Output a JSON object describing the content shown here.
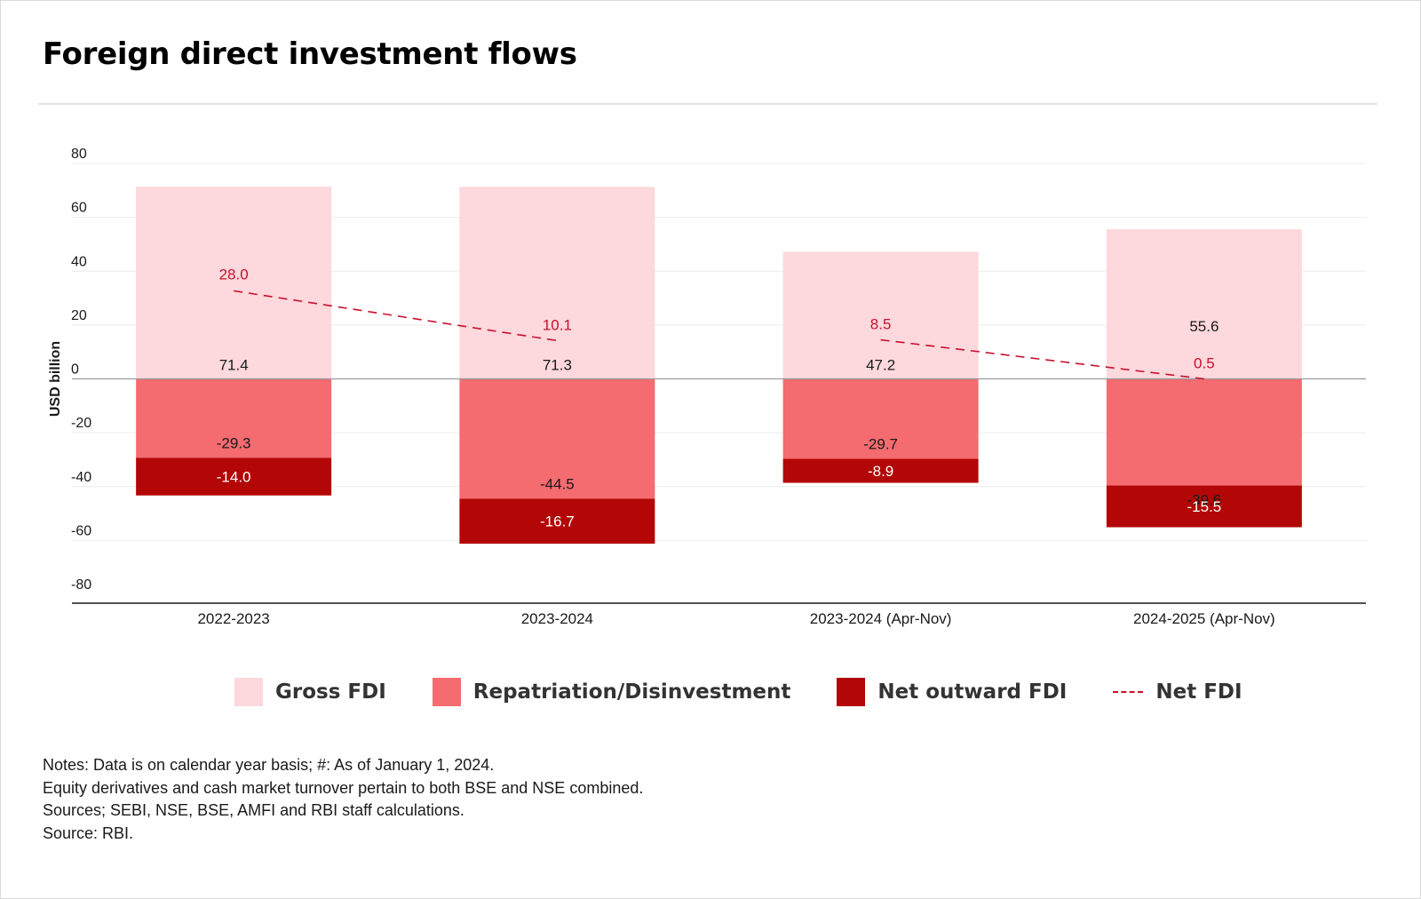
{
  "title": "Foreign direct investment flows",
  "colors": {
    "gross": "#fdd8dc",
    "repatriation": "#f46b70",
    "net_outward": "#b30707",
    "net_fdi": "#c8102e"
  },
  "chart_data": {
    "type": "bar",
    "stacked": true,
    "ylabel": "USD billion",
    "xlabel": "",
    "ylim": [
      -80,
      80
    ],
    "yticks": [
      80,
      60,
      40,
      20,
      0,
      -20,
      -40,
      -60,
      -80
    ],
    "grid": true,
    "legend_position": "bottom",
    "categories": [
      "2022-2023",
      "2023-2024",
      "2023-2024 (Apr-Nov)",
      "2024-2025 (Apr-Nov)"
    ],
    "series": [
      {
        "name": "Gross FDI",
        "type": "bar",
        "values": [
          71.4,
          71.3,
          47.2,
          55.6
        ],
        "labels": [
          "71.4",
          "71.3",
          "47.2",
          "55.6"
        ]
      },
      {
        "name": "Repatriation/Disinvestment",
        "type": "bar",
        "values": [
          -29.3,
          -44.5,
          -29.7,
          -39.6
        ],
        "labels": [
          "-29.3",
          "-44.5",
          "-29.7",
          "-39.6"
        ]
      },
      {
        "name": "Net outward FDI",
        "type": "bar",
        "values": [
          -14.0,
          -16.7,
          -8.9,
          -15.5
        ],
        "labels": [
          "-14.0",
          "-16.7",
          "-8.9",
          "-15.5"
        ]
      },
      {
        "name": "Net FDI",
        "type": "line",
        "style": "dashed",
        "values": [
          28.0,
          10.1,
          8.5,
          0.5
        ],
        "labels": [
          "28.0",
          "10.1",
          "8.5",
          "0.5"
        ]
      }
    ]
  },
  "legend": [
    {
      "label": "Gross FDI",
      "kind": "swatch",
      "color": "#fdd8dc"
    },
    {
      "label": "Repatriation/Disinvestment",
      "kind": "swatch",
      "color": "#f46b70"
    },
    {
      "label": "Net outward FDI",
      "kind": "swatch",
      "color": "#b30707"
    },
    {
      "label": "Net FDI",
      "kind": "dashed-line",
      "color": "#c8102e"
    }
  ],
  "notes": [
    "Notes: Data is on calendar year basis; #: As of January 1, 2024.",
    "Equity derivatives and cash market turnover pertain to both BSE and NSE combined.",
    "Sources; SEBI, NSE, BSE, AMFI and RBI staff calculations.",
    "Source: RBI."
  ]
}
